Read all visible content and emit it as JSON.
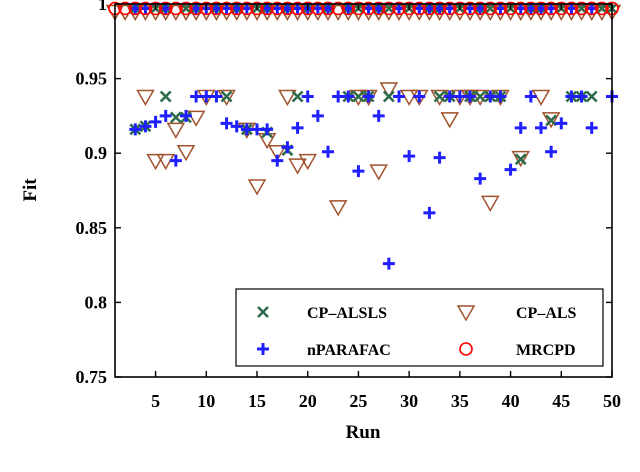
{
  "chart_data": {
    "type": "scatter",
    "xlabel": "Run",
    "ylabel": "Fit",
    "xlim": [
      1,
      50
    ],
    "ylim": [
      0.75,
      1.0
    ],
    "xticks": [
      5,
      10,
      15,
      20,
      25,
      30,
      35,
      40,
      45,
      50
    ],
    "yticks": [
      0.75,
      0.8,
      0.85,
      0.9,
      0.95,
      1
    ],
    "ytick_labels": [
      "0.75",
      "0.8",
      "0.85",
      "0.9",
      "0.95",
      "1"
    ],
    "grid": false,
    "legend_position": "bottom-right",
    "series": [
      {
        "name": "CP–ALSLS",
        "marker": "x",
        "color": "#2e6b4a",
        "x": [
          3,
          4,
          6,
          7,
          8,
          12,
          14,
          16,
          18,
          19,
          24,
          25,
          26,
          28,
          33,
          34,
          36,
          37,
          38,
          39,
          41,
          44,
          46,
          47,
          48
        ],
        "y": [
          0.916,
          0.918,
          0.938,
          0.924,
          0.924,
          0.938,
          0.916,
          0.914,
          0.902,
          0.938,
          0.938,
          0.938,
          0.938,
          0.938,
          0.938,
          0.938,
          0.938,
          0.938,
          0.938,
          0.938,
          0.896,
          0.922,
          0.938,
          0.938,
          0.938
        ]
      },
      {
        "name": "CP–ALS",
        "marker": "triangle-down",
        "color": "#a0522d",
        "x": [
          4,
          5,
          6,
          7,
          8,
          9,
          10,
          12,
          14,
          15,
          16,
          17,
          18,
          19,
          20,
          23,
          25,
          26,
          27,
          28,
          30,
          31,
          33,
          34,
          35,
          36,
          37,
          38,
          39,
          41,
          43,
          44
        ],
        "y": [
          0.938,
          0.895,
          0.895,
          0.916,
          0.901,
          0.924,
          0.938,
          0.938,
          0.916,
          0.878,
          0.909,
          0.901,
          0.938,
          0.892,
          0.895,
          0.864,
          0.938,
          0.938,
          0.888,
          0.943,
          0.938,
          0.938,
          0.938,
          0.923,
          0.938,
          0.938,
          0.938,
          0.867,
          0.938,
          0.897,
          0.938,
          0.923
        ]
      },
      {
        "name": "nPARAFAC",
        "marker": "plus",
        "color": "#1f1fff",
        "x": [
          3,
          4,
          5,
          6,
          7,
          8,
          9,
          10,
          11,
          12,
          13,
          14,
          15,
          16,
          17,
          18,
          19,
          20,
          21,
          22,
          23,
          24,
          25,
          26,
          27,
          28,
          29,
          30,
          31,
          32,
          33,
          34,
          35,
          36,
          37,
          38,
          39,
          40,
          41,
          42,
          43,
          44,
          45,
          46,
          47,
          48,
          50
        ],
        "y": [
          0.916,
          0.918,
          0.921,
          0.925,
          0.895,
          0.925,
          0.938,
          0.938,
          0.938,
          0.92,
          0.918,
          0.916,
          0.916,
          0.916,
          0.895,
          0.904,
          0.917,
          0.938,
          0.925,
          0.901,
          0.938,
          0.938,
          0.888,
          0.938,
          0.925,
          0.826,
          0.938,
          0.898,
          0.938,
          0.86,
          0.897,
          0.938,
          0.938,
          0.938,
          0.883,
          0.938,
          0.938,
          0.889,
          0.917,
          0.938,
          0.917,
          0.901,
          0.92,
          0.938,
          0.938,
          0.917,
          0.938
        ]
      },
      {
        "name": "MRCPD",
        "marker": "circle",
        "color": "#ff0000",
        "x": [
          1,
          2,
          3,
          4,
          5,
          6,
          7,
          8,
          9,
          10,
          11,
          12,
          13,
          14,
          15,
          16,
          17,
          18,
          19,
          20,
          21,
          22,
          23,
          24,
          25,
          26,
          27,
          28,
          29,
          30,
          31,
          32,
          33,
          34,
          35,
          36,
          37,
          38,
          39,
          40,
          41,
          42,
          43,
          44,
          45,
          46,
          47,
          48,
          49,
          50
        ],
        "y": [
          0.997,
          0.997,
          0.997,
          0.997,
          0.997,
          0.997,
          0.997,
          0.997,
          0.997,
          0.997,
          0.997,
          0.997,
          0.997,
          0.997,
          0.997,
          0.997,
          0.997,
          0.997,
          0.997,
          0.997,
          0.997,
          0.997,
          0.997,
          0.997,
          0.997,
          0.997,
          0.997,
          0.997,
          0.997,
          0.997,
          0.997,
          0.997,
          0.997,
          0.997,
          0.997,
          0.997,
          0.997,
          0.997,
          0.997,
          0.997,
          0.997,
          0.997,
          0.997,
          0.997,
          0.997,
          0.997,
          0.997,
          0.997,
          0.997,
          0.997
        ]
      }
    ],
    "overlay_series": {
      "triangle_row_1": {
        "marker": "triangle-down",
        "color": "#a0522d",
        "x": [
          1,
          2,
          3,
          4,
          5,
          6,
          7,
          8,
          9,
          10,
          11,
          12,
          13,
          14,
          15,
          16,
          17,
          18,
          19,
          20,
          21,
          22,
          23,
          24,
          25,
          26,
          27,
          28,
          29,
          30,
          31,
          32,
          33,
          34,
          35,
          36,
          37,
          38,
          39,
          40,
          41,
          42,
          43,
          44,
          45,
          46,
          47,
          48,
          49,
          50
        ],
        "y": 0.995
      },
      "plus_row_1": {
        "marker": "plus",
        "color": "#1f1fff",
        "x": [
          3,
          4,
          6,
          9,
          10,
          11,
          12,
          13,
          14,
          16,
          17,
          18,
          19,
          20,
          21,
          22,
          24,
          26,
          27,
          29,
          31,
          32,
          33,
          34,
          36,
          37,
          39,
          41,
          42,
          43,
          44,
          46,
          48
        ],
        "y": 0.997
      },
      "x_row_1": {
        "marker": "x",
        "color": "#2e6b4a",
        "x": [
          3,
          5,
          6,
          8,
          9,
          11,
          13,
          15,
          16,
          18,
          20,
          22,
          24,
          25,
          27,
          28,
          30,
          32,
          33,
          35,
          37,
          38,
          40,
          42,
          43,
          45,
          47,
          49,
          50
        ],
        "y": 0.997
      }
    }
  }
}
